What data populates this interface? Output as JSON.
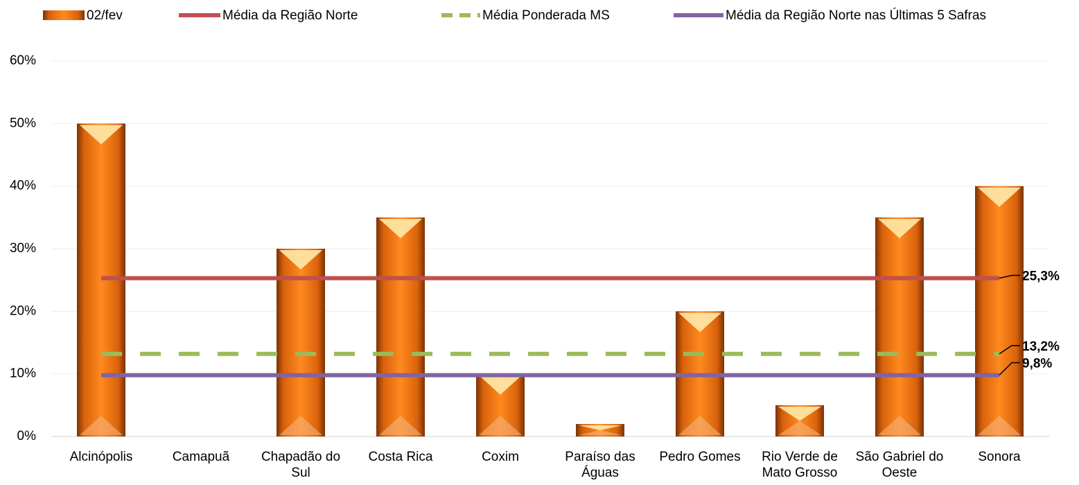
{
  "chart_data": {
    "type": "bar",
    "categories": [
      "Alcinópolis",
      "Camapuã",
      "Chapadão do Sul",
      "Costa Rica",
      "Coxim",
      "Paraíso das Águas",
      "Pedro Gomes",
      "Rio Verde de Mato Grosso",
      "São Gabriel do Oeste",
      "Sonora"
    ],
    "series": [
      {
        "name": "02/fev",
        "type": "bar",
        "color": "#e46c0a",
        "values": [
          50,
          0,
          30,
          35,
          10,
          2,
          20,
          5,
          35,
          40
        ]
      },
      {
        "name": "Média da Região Norte",
        "type": "line",
        "color": "#c0504d",
        "values": [
          25.3,
          25.3,
          25.3,
          25.3,
          25.3,
          25.3,
          25.3,
          25.3,
          25.3,
          25.3
        ],
        "end_label": "25,3%"
      },
      {
        "name": "Média Ponderada MS",
        "type": "line",
        "dashed": true,
        "color": "#9bbb59",
        "values": [
          13.2,
          13.2,
          13.2,
          13.2,
          13.2,
          13.2,
          13.2,
          13.2,
          13.2,
          13.2
        ],
        "end_label": "13,2%"
      },
      {
        "name": "Média da Região Norte nas Últimas 5 Safras",
        "type": "line",
        "color": "#8064a2",
        "values": [
          9.8,
          9.8,
          9.8,
          9.8,
          9.8,
          9.8,
          9.8,
          9.8,
          9.8,
          9.8
        ],
        "end_label": "9,8%"
      }
    ],
    "ylim": [
      0,
      60
    ],
    "yticks": [
      {
        "value": 0,
        "label": "0%"
      },
      {
        "value": 10,
        "label": "10%"
      },
      {
        "value": 20,
        "label": "20%"
      },
      {
        "value": 30,
        "label": "30%"
      },
      {
        "value": 40,
        "label": "40%"
      },
      {
        "value": 50,
        "label": "50%"
      },
      {
        "value": 60,
        "label": "60%"
      }
    ],
    "grid": true,
    "legend": "top"
  }
}
